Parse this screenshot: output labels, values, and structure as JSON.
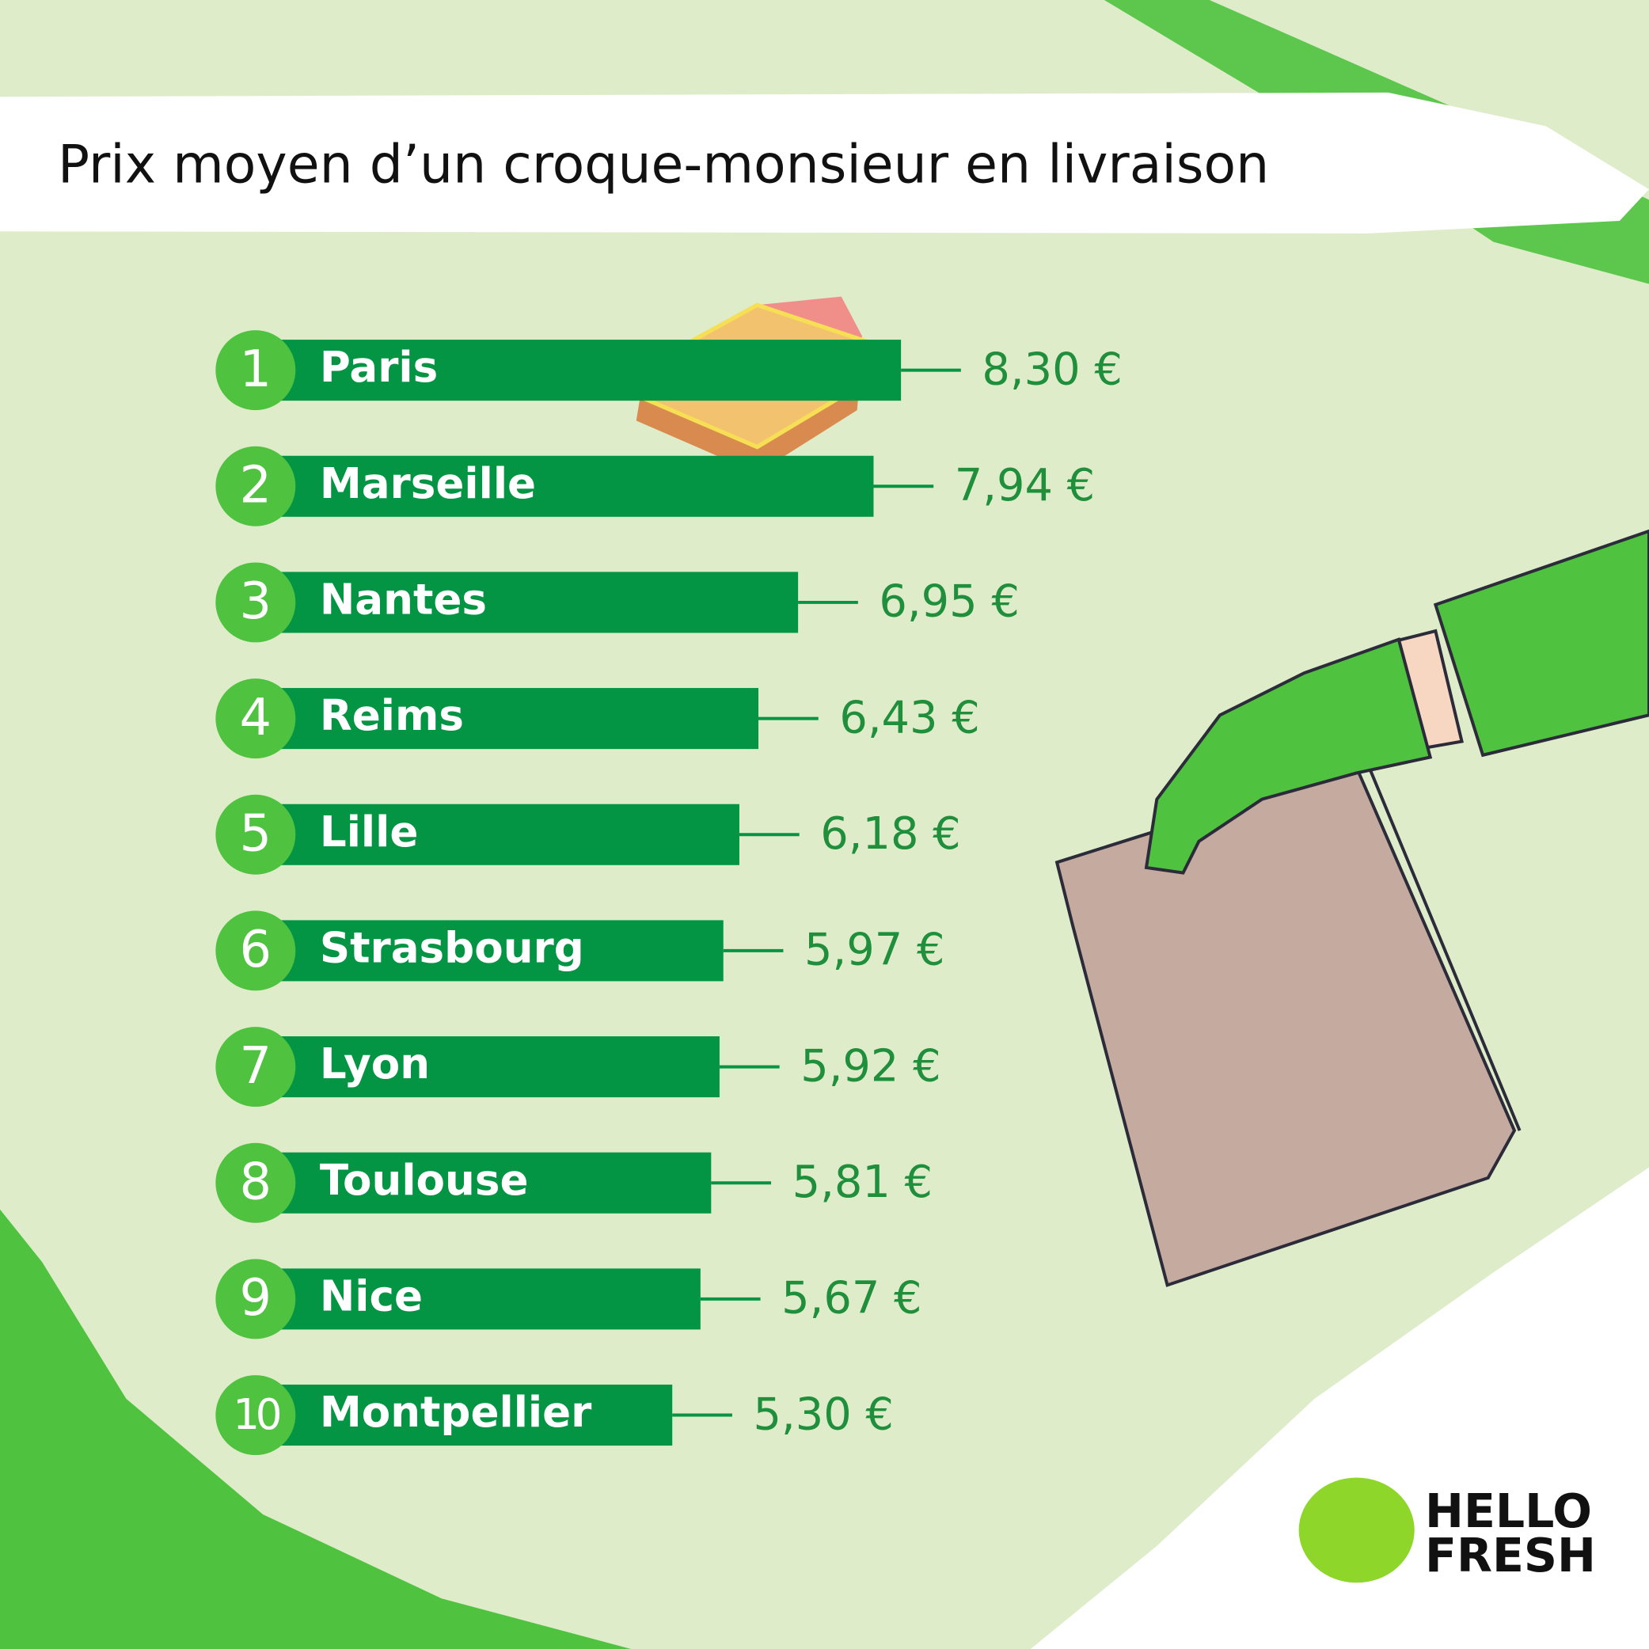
{
  "chart_data": {
    "type": "bar",
    "orientation": "horizontal",
    "title": "Prix moyen d’un croque-monsieur en livraison",
    "ranks": [
      "1",
      "2",
      "3",
      "4",
      "5",
      "6",
      "7",
      "8",
      "9",
      "10"
    ],
    "categories": [
      "Paris",
      "Marseille",
      "Nantes",
      "Reims",
      "Lille",
      "Strasbourg",
      "Lyon",
      "Toulouse",
      "Nice",
      "Montpellier"
    ],
    "values": [
      8.3,
      7.94,
      6.95,
      6.43,
      6.18,
      5.97,
      5.92,
      5.81,
      5.67,
      5.3
    ],
    "value_labels": [
      "8,30 €",
      "7,94 €",
      "6,95 €",
      "6,43 €",
      "6,18 €",
      "5,97 €",
      "5,92 €",
      "5,81 €",
      "5,67 €",
      "5,30 €"
    ],
    "color": "#049544",
    "rank_color": "#4fc23f",
    "label_color": "#1f8f3c"
  },
  "logo": {
    "line1": "HELLO",
    "line2": "FRESH"
  }
}
